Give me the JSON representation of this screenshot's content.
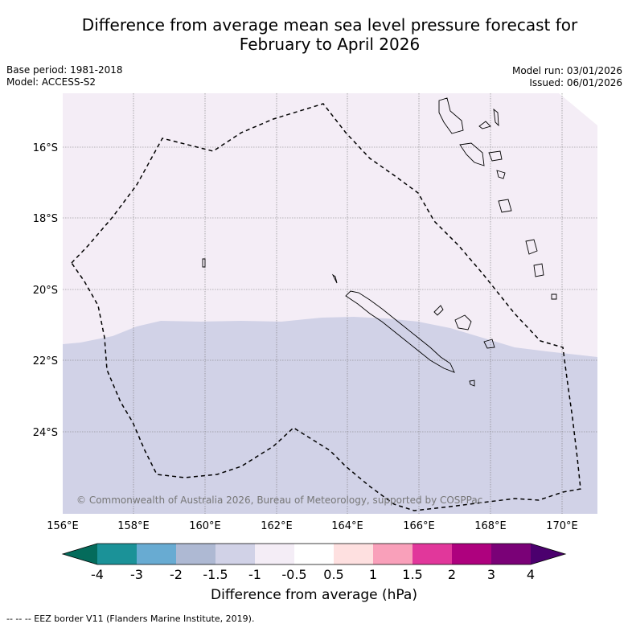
{
  "title_line1": "Difference from average mean sea level pressure forecast for",
  "title_line2": "February to April 2026",
  "base_period": "Base period: 1981-2018",
  "model": "Model: ACCESS-S2",
  "model_run": "Model run: 03/01/2026",
  "issued": "Issued: 06/01/2026",
  "copyright": "© Commonwealth of Australia 2026, Bureau of Meteorology, supported by COSPPac",
  "map": {
    "lon_labels": [
      "156°E",
      "158°E",
      "160°E",
      "162°E",
      "164°E",
      "166°E",
      "168°E",
      "170°E"
    ],
    "lat_labels": [
      "16°S",
      "18°S",
      "20°S",
      "22°S",
      "24°S"
    ],
    "colors": {
      "band_neg_1_5_to_neg_1": "#d1d2e7",
      "band_neg_1_to_neg_0_5": "#f4edf6",
      "coastline": "#000000",
      "eez": "#000000"
    }
  },
  "colorbar": {
    "tick_labels": [
      "-4",
      "-3",
      "-2",
      "-1.5",
      "-1",
      "-0.5",
      "0.5",
      "1",
      "1.5",
      "2",
      "3",
      "4"
    ],
    "under_color": "#046b5b",
    "over_color": "#4b006e",
    "colors": [
      "#1b9298",
      "#68abd2",
      "#aeb9d3",
      "#d1d2e7",
      "#f4edf6",
      "#ffffff",
      "#fee0e0",
      "#f9a0ba",
      "#e1379b",
      "#ae017e",
      "#7a0177"
    ],
    "label": "Difference from average (hPa)"
  },
  "footnote": "--  --  -- EEZ border V11 (Flanders Marine Institute, 2019)."
}
